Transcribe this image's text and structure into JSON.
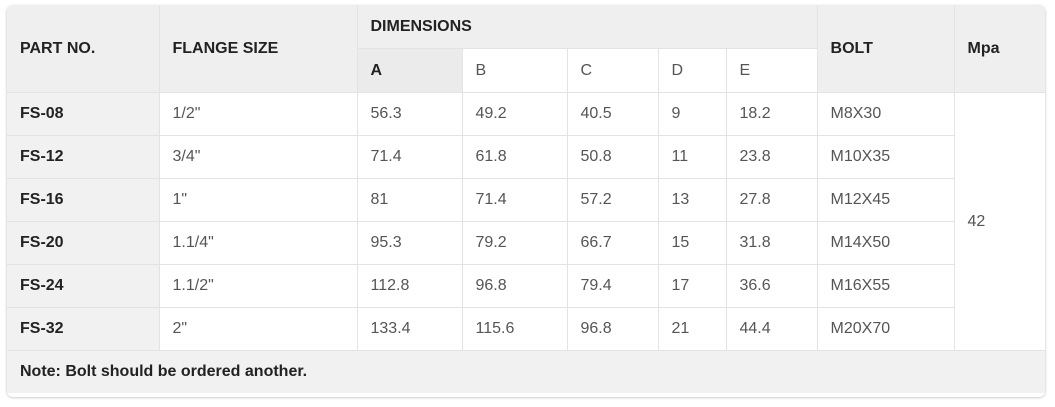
{
  "header": {
    "part_no": "PART NO.",
    "flange_size": "FLANGE SIZE",
    "dimensions": "DIMENSIONS",
    "dims": [
      "A",
      "B",
      "C",
      "D",
      "E"
    ],
    "bolt": "BOLT",
    "mpa": "Mpa"
  },
  "rows": [
    {
      "part": "FS-08",
      "size": "1/2\"",
      "a": "56.3",
      "b": "49.2",
      "c": "40.5",
      "d": "9",
      "e": "18.2",
      "bolt": "M8X30"
    },
    {
      "part": "FS-12",
      "size": "3/4\"",
      "a": "71.4",
      "b": "61.8",
      "c": "50.8",
      "d": "11",
      "e": "23.8",
      "bolt": "M10X35"
    },
    {
      "part": "FS-16",
      "size": "1\"",
      "a": "81",
      "b": "71.4",
      "c": "57.2",
      "d": "13",
      "e": "27.8",
      "bolt": "M12X45"
    },
    {
      "part": "FS-20",
      "size": "1.1/4\"",
      "a": "95.3",
      "b": "79.2",
      "c": "66.7",
      "d": "15",
      "e": "31.8",
      "bolt": "M14X50"
    },
    {
      "part": "FS-24",
      "size": "1.1/2\"",
      "a": "112.8",
      "b": "96.8",
      "c": "79.4",
      "d": "17",
      "e": "36.6",
      "bolt": "M16X55"
    },
    {
      "part": "FS-32",
      "size": "2\"",
      "a": "133.4",
      "b": "115.6",
      "c": "96.8",
      "d": "21",
      "e": "44.4",
      "bolt": "M20X70"
    }
  ],
  "mpa_value": "42",
  "note": "Note: Bolt should be ordered another."
}
